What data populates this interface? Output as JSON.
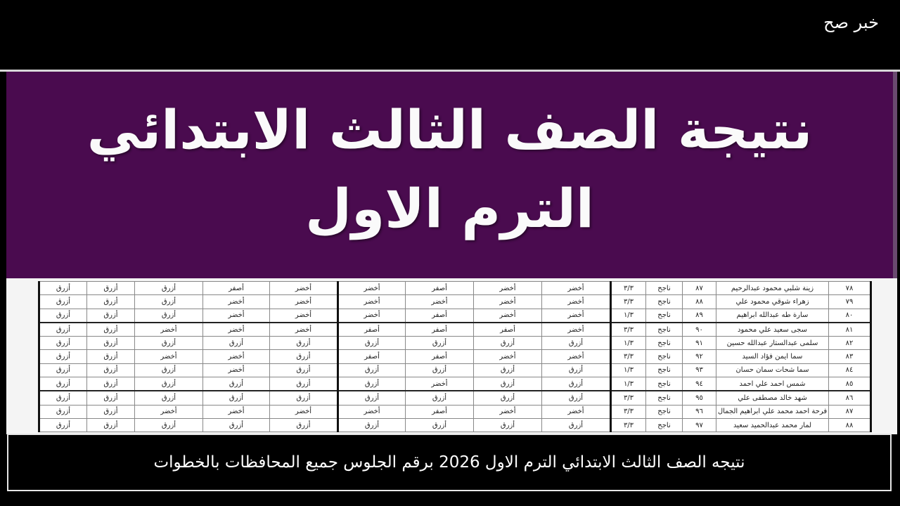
{
  "brand": "خبر صح",
  "banner": {
    "title_line1": "نتيجة الصف الثالث الابتدائي",
    "title_line2": "الترم الاول",
    "background_color": "#4a0b4f"
  },
  "table": {
    "rows": [
      {
        "cols": [
          "أزرق",
          "أزرق",
          "أزرق",
          "أصفر",
          "أخضر",
          "أخضر",
          "أصفر",
          "أخضر",
          "أخضر"
        ],
        "fraction": "٣/٣",
        "status": "ناجح",
        "score": "٨٧",
        "name": "زينة شلبي محمود عبدالرحيم",
        "number": "٧٨"
      },
      {
        "cols": [
          "أزرق",
          "أزرق",
          "أزرق",
          "أخضر",
          "أخضر",
          "أخضر",
          "أخضر",
          "أخضر",
          "أخضر"
        ],
        "fraction": "٣/٣",
        "status": "ناجح",
        "score": "٨٨",
        "name": "زهراء شوقي محمود علي",
        "number": "٧٩"
      },
      {
        "cols": [
          "أزرق",
          "أزرق",
          "أزرق",
          "أخضر",
          "أخضر",
          "أخضر",
          "أصفر",
          "أخضر",
          "أخضر"
        ],
        "fraction": "١/٣",
        "status": "ناجح",
        "score": "٨٩",
        "name": "سارة طه عبدالله ابراهيم",
        "number": "٨٠"
      },
      {
        "cols": [
          "أزرق",
          "أزرق",
          "أخضر",
          "أخضر",
          "أخضر",
          "أصفر",
          "أصفر",
          "أصفر",
          "أخضر"
        ],
        "fraction": "٣/٣",
        "status": "ناجح",
        "score": "٩٠",
        "name": "سجى سعيد علي محمود",
        "number": "٨١"
      },
      {
        "cols": [
          "أزرق",
          "أزرق",
          "أزرق",
          "أزرق",
          "أزرق",
          "أزرق",
          "أزرق",
          "أزرق",
          "أزرق"
        ],
        "fraction": "١/٣",
        "status": "ناجح",
        "score": "٩١",
        "name": "سلمى عبدالستار عبدالله حسين",
        "number": "٨٢"
      },
      {
        "cols": [
          "أزرق",
          "أزرق",
          "أخضر",
          "أخضر",
          "أزرق",
          "أصفر",
          "أصفر",
          "أخضر",
          "أخضر"
        ],
        "fraction": "٣/٣",
        "status": "ناجح",
        "score": "٩٢",
        "name": "سما ايمن فؤاد السيد",
        "number": "٨٣"
      },
      {
        "cols": [
          "أزرق",
          "أزرق",
          "أزرق",
          "أخضر",
          "أزرق",
          "أزرق",
          "أزرق",
          "أزرق",
          "أزرق"
        ],
        "fraction": "١/٣",
        "status": "ناجح",
        "score": "٩٣",
        "name": "سما شحات سمان حسان",
        "number": "٨٤"
      },
      {
        "cols": [
          "أزرق",
          "أزرق",
          "أزرق",
          "أزرق",
          "أزرق",
          "أزرق",
          "أخضر",
          "أزرق",
          "أزرق"
        ],
        "fraction": "١/٣",
        "status": "ناجح",
        "score": "٩٤",
        "name": "شمس احمد علي احمد",
        "number": "٨٥"
      },
      {
        "cols": [
          "أزرق",
          "أزرق",
          "أزرق",
          "أزرق",
          "أزرق",
          "أزرق",
          "أزرق",
          "أزرق",
          "أزرق"
        ],
        "fraction": "٣/٣",
        "status": "ناجح",
        "score": "٩٥",
        "name": "شهد خالد مصطفى علي",
        "number": "٨٦"
      },
      {
        "cols": [
          "أزرق",
          "أزرق",
          "أخضر",
          "أخضر",
          "أخضر",
          "أخضر",
          "أصفر",
          "أخضر",
          "أخضر"
        ],
        "fraction": "٣/٣",
        "status": "ناجح",
        "score": "٩٦",
        "name": "فرحة احمد محمد علي ابراهيم الجمال",
        "number": "٨٧"
      },
      {
        "cols": [
          "أزرق",
          "أزرق",
          "أزرق",
          "أزرق",
          "أزرق",
          "أزرق",
          "أزرق",
          "أزرق",
          "أزرق"
        ],
        "fraction": "٣/٣",
        "status": "ناجح",
        "score": "٩٧",
        "name": "لمار محمد عبدالحميد سعيد",
        "number": "٨٨"
      }
    ]
  },
  "caption": "نتيجه الصف الثالث الابتدائي الترم الاول 2026 برقم الجلوس جميع المحافظات بالخطوات"
}
